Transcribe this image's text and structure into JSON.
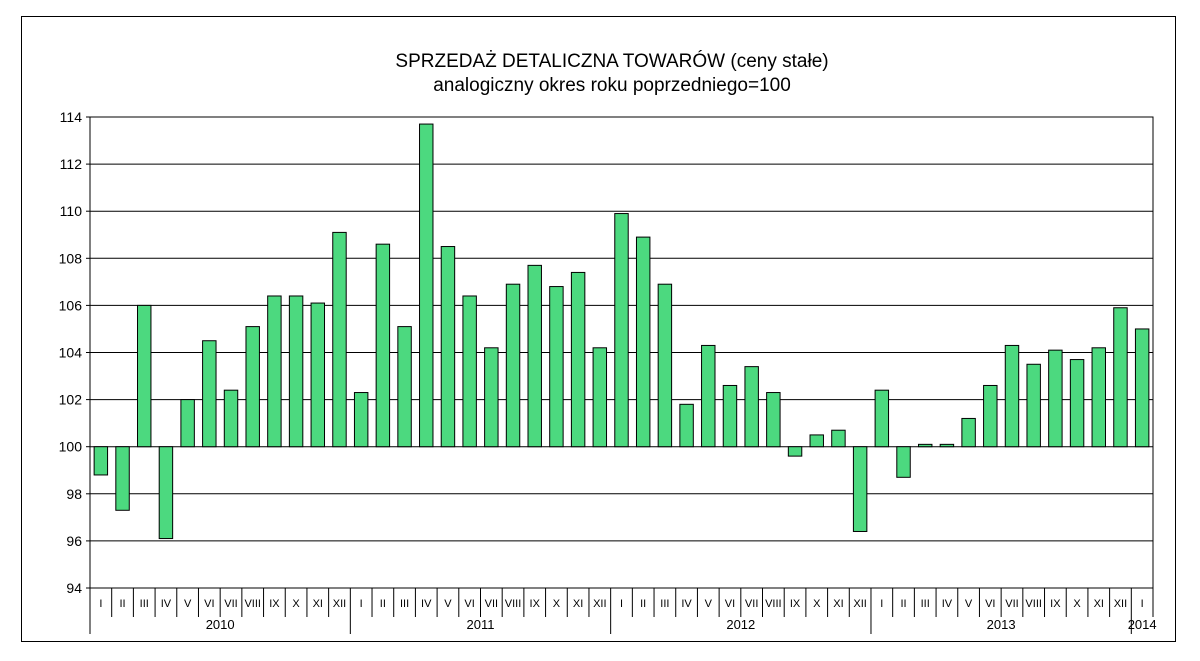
{
  "chart_data": {
    "type": "bar",
    "title": "SPRZEDAŻ DETALICZNA TOWARÓW  (ceny stałe)",
    "subtitle": "analogiczny okres roku poprzedniego=100",
    "baseline": 100,
    "ylim": [
      94,
      114
    ],
    "yticks": [
      "94",
      "96",
      "98",
      "100",
      "102",
      "104",
      "106",
      "108",
      "110",
      "112",
      "114"
    ],
    "grid": true,
    "bar_color": "#4cd97f",
    "categories": [
      "I",
      "II",
      "III",
      "IV",
      "V",
      "VI",
      "VII",
      "VIII",
      "IX",
      "X",
      "XI",
      "XII",
      "I",
      "II",
      "III",
      "IV",
      "V",
      "VI",
      "VII",
      "VIII",
      "IX",
      "X",
      "XI",
      "XII",
      "I",
      "II",
      "III",
      "IV",
      "V",
      "VI",
      "VII",
      "VIII",
      "IX",
      "X",
      "XI",
      "XII",
      "I",
      "II",
      "III",
      "IV",
      "V",
      "VI",
      "VII",
      "VIII",
      "IX",
      "X",
      "XI",
      "XII",
      "I"
    ],
    "years": [
      {
        "label": "2010",
        "count": 12
      },
      {
        "label": "2011",
        "count": 12
      },
      {
        "label": "2012",
        "count": 12
      },
      {
        "label": "2013",
        "count": 12
      },
      {
        "label": "2014",
        "count": 1
      }
    ],
    "values": [
      98.8,
      97.3,
      106.0,
      96.1,
      102.0,
      104.5,
      102.4,
      105.1,
      106.4,
      106.4,
      106.1,
      109.1,
      102.3,
      108.6,
      105.1,
      113.7,
      108.5,
      106.4,
      104.2,
      106.9,
      107.7,
      106.8,
      107.4,
      104.2,
      109.9,
      108.9,
      106.9,
      101.8,
      104.3,
      102.6,
      103.4,
      102.3,
      99.6,
      100.5,
      100.7,
      96.4,
      102.4,
      98.7,
      100.1,
      100.1,
      101.2,
      102.6,
      104.3,
      103.5,
      104.1,
      103.7,
      104.2,
      105.9,
      105.0
    ]
  }
}
